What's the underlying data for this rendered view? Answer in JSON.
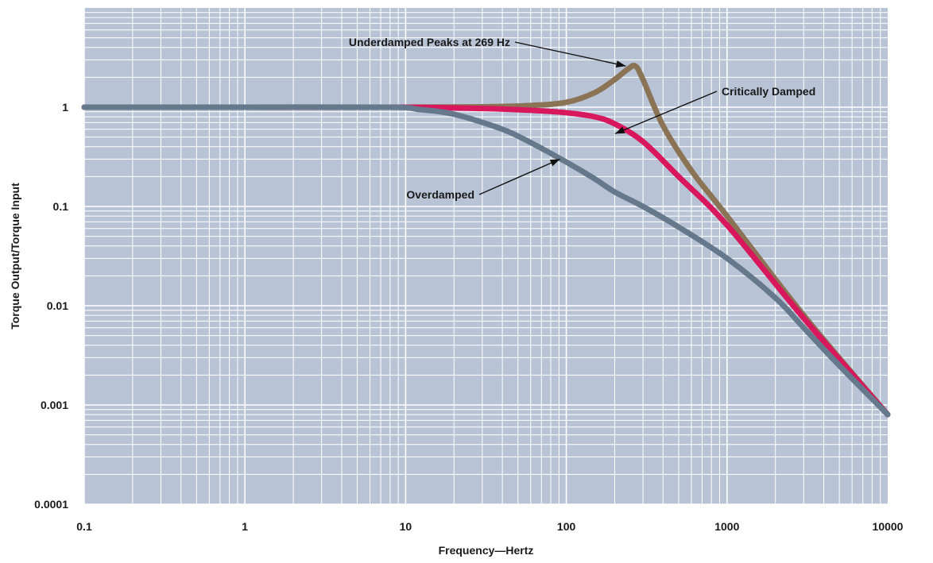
{
  "chart_data": {
    "type": "line",
    "xlabel": "Frequency—Hertz",
    "ylabel": "Torque Output/Torque Input",
    "xscale": "log",
    "yscale": "log",
    "xlim": [
      0.1,
      10000
    ],
    "ylim": [
      0.0001,
      10
    ],
    "grid": true,
    "x_ticks": [
      "0.1",
      "1",
      "10",
      "100",
      "1000",
      "10000"
    ],
    "y_ticks": [
      "0.0001",
      "0.001",
      "0.01",
      "0.1",
      "1"
    ],
    "series": [
      {
        "color": "#8b7355",
        "x": [
          0.1,
          1,
          10,
          30,
          60,
          100,
          150,
          200,
          240,
          269,
          300,
          400,
          600,
          1000,
          3000,
          10000
        ],
        "y": [
          1,
          1,
          1,
          1.01,
          1.04,
          1.12,
          1.4,
          1.9,
          2.4,
          2.6,
          1.9,
          0.65,
          0.23,
          0.08,
          0.008,
          0.0008
        ]
      },
      {
        "color": "#d8175c",
        "x": [
          0.1,
          1,
          10,
          30,
          60,
          100,
          150,
          200,
          300,
          500,
          1000,
          3000,
          10000
        ],
        "y": [
          1,
          1,
          1,
          0.97,
          0.93,
          0.88,
          0.8,
          0.68,
          0.45,
          0.2,
          0.065,
          0.0075,
          0.0008
        ]
      },
      {
        "color": "#66798c",
        "x": [
          0.1,
          1,
          8,
          12,
          20,
          40,
          60,
          100,
          150,
          200,
          300,
          500,
          1000,
          2000,
          3000,
          5000,
          10000
        ],
        "y": [
          1,
          1,
          1,
          0.95,
          0.85,
          0.6,
          0.44,
          0.28,
          0.19,
          0.14,
          0.1,
          0.062,
          0.03,
          0.012,
          0.006,
          0.0025,
          0.0008
        ]
      }
    ],
    "annotations": [
      {
        "text": "Underdamped Peaks at 269 Hz",
        "x": 269,
        "y": 2.6
      },
      {
        "text": "Critically Damped",
        "x": 220,
        "y": 0.65
      },
      {
        "text": "Overdamped",
        "x": 100,
        "y": 0.3
      }
    ]
  }
}
